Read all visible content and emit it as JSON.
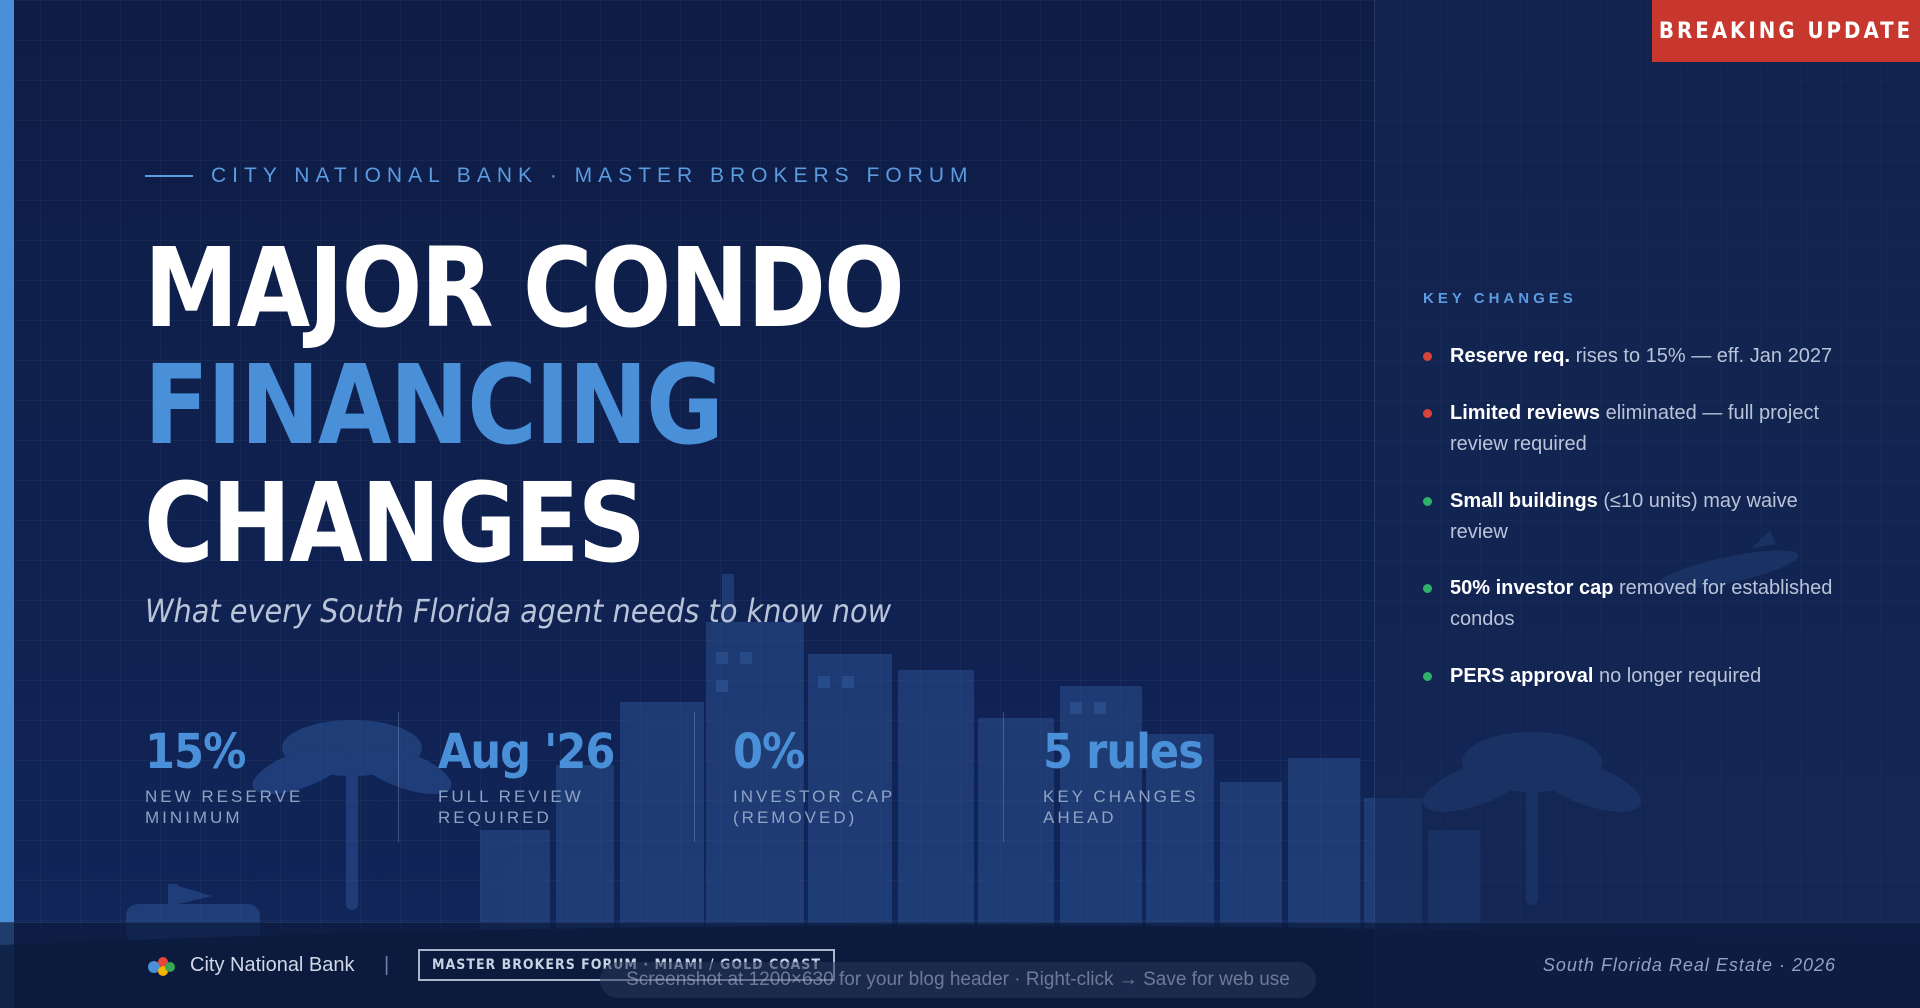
{
  "badge": "BREAKING UPDATE",
  "eyebrow": "CITY NATIONAL BANK · MASTER BROKERS FORUM",
  "headline": {
    "line1": "MAJOR CONDO",
    "line2": "FINANCING",
    "line3": "CHANGES"
  },
  "subtitle": "What every South Florida agent needs to know now",
  "stats": [
    {
      "value": "15%",
      "label": "NEW RESERVE\nMINIMUM"
    },
    {
      "value": "Aug '26",
      "label": "FULL REVIEW\nREQUIRED"
    },
    {
      "value": "0%",
      "label": "INVESTOR CAP\n(REMOVED)"
    },
    {
      "value": "5 rules",
      "label": "KEY CHANGES\nAHEAD"
    }
  ],
  "key_changes": {
    "title": "KEY CHANGES",
    "items": [
      {
        "bold": "Reserve req.",
        "text": " rises to 15% — eff. Jan 2027",
        "status_color": "#d9443a"
      },
      {
        "bold": "Limited reviews",
        "text": " eliminated — full project review required",
        "status_color": "#d9443a"
      },
      {
        "bold": "Small buildings",
        "text": " (≤10 units) may waive review",
        "status_color": "#2fb36b"
      },
      {
        "bold": "50% investor cap",
        "text": " removed for established condos",
        "status_color": "#2fb36b"
      },
      {
        "bold": "PERS approval",
        "text": " no longer required",
        "status_color": "#2fb36b"
      }
    ]
  },
  "footer": {
    "brand": "City National Bank",
    "separator": "|",
    "event": "MASTER BROKERS FORUM · MIAMI / GOLD COAST",
    "tagline": "South Florida Real Estate · 2026",
    "logo_icon": "colored-dots-logo"
  },
  "tooltip": "Screenshot at 1200×630 for your blog header · Right-click → Save for web use",
  "colors": {
    "background": "#0f2150",
    "accent_blue": "#4a90d9",
    "badge_red": "#c8372d",
    "white": "#ffffff"
  }
}
